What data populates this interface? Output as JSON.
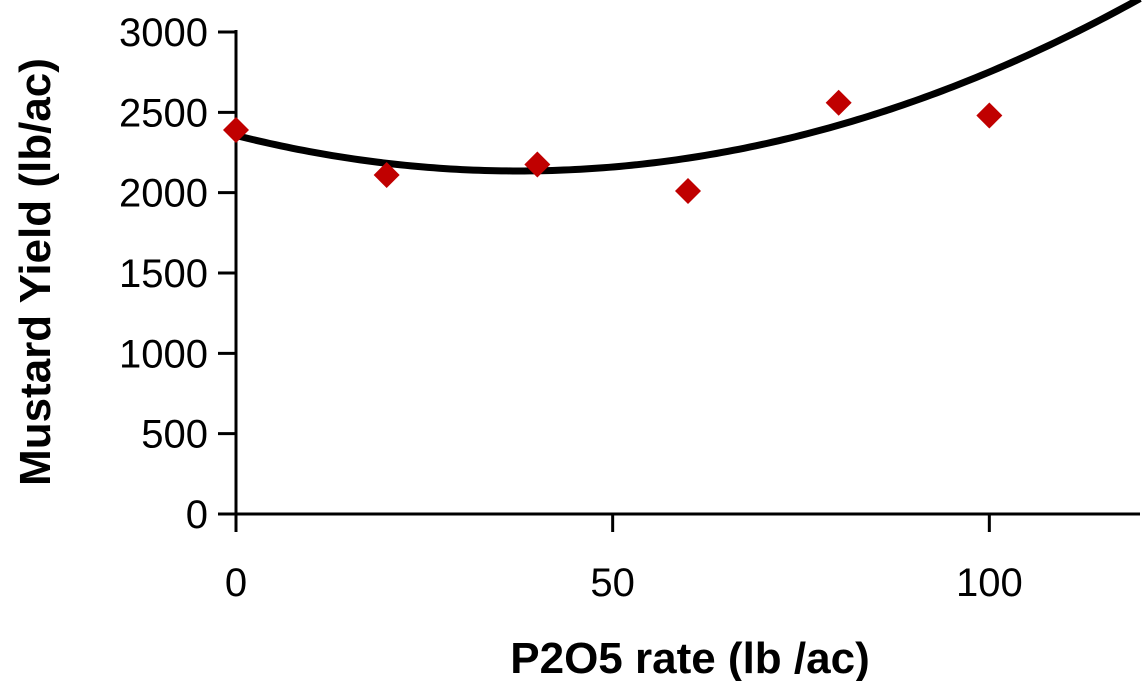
{
  "chart_data": {
    "type": "scatter",
    "xlabel": "P2O5 rate (lb /ac)",
    "ylabel": "Mustard Yield (lb/ac)",
    "xlim": [
      0,
      120
    ],
    "ylim": [
      0,
      3000
    ],
    "x_ticks": [
      0,
      50,
      100
    ],
    "y_ticks": [
      0,
      500,
      1000,
      1500,
      2000,
      2500,
      3000
    ],
    "x_tick_labels": [
      "0",
      "50",
      "100"
    ],
    "y_tick_labels": [
      "0",
      "500",
      "1000",
      "1500",
      "2000",
      "2500",
      "3000"
    ],
    "grid": false,
    "legend": "none",
    "series": [
      {
        "marker": "diamond",
        "color": "#C00000",
        "x": [
          0,
          20,
          40,
          60,
          80,
          100
        ],
        "y": [
          2390,
          2110,
          2175,
          2010,
          2560,
          2480
        ]
      }
    ],
    "trendline": {
      "type": "polynomial",
      "order": 2,
      "color": "#000000",
      "coefficients": [
        2356,
        -11.8,
        0.1575
      ]
    }
  }
}
